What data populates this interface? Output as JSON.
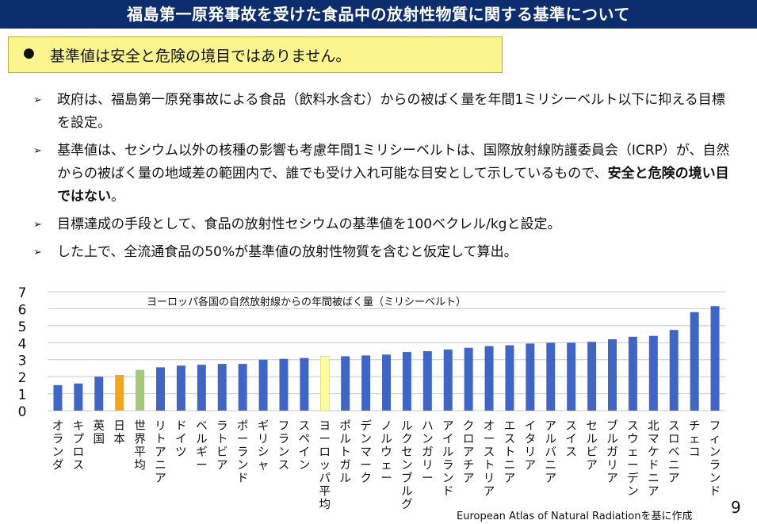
{
  "header": {
    "title": "福島第一原発事故を受けた食品中の放射性物質に関する基準について"
  },
  "callout": {
    "bullet": "●",
    "text": "基準値は安全と危険の境目ではありません。"
  },
  "bullets": {
    "b1": "政府は、福島第一原発事故による食品（飲料水含む）からの被ばく量を年間1ミリシーベルト以下に抑える目標を設定。",
    "b2_pre": "基準値は、セシウム以外の核種の影響も考慮年間1ミリシーベルトは、国際放射線防護委員会（ICRP）が、自然からの被ばく量の地域差の範囲内で、誰でも受け入れ可能な目安として示しているもので、",
    "b2_bold": "安全と危険の境い目ではない",
    "b2_post": "。",
    "b3": "目標達成の手段として、食品の放射性セシウムの基準値を100ベクレル/kgと設定。",
    "b4": "した上で、全流通食品の50%が基準値の放射性物質を含むと仮定して算出。"
  },
  "chart_data": {
    "type": "bar",
    "title": "ヨーロッパ各国の自然放射線からの年間被ばく量（ミリシーベルト）",
    "ylim": [
      0,
      7
    ],
    "yticks": [
      0,
      1,
      2,
      3,
      4,
      5,
      6,
      7
    ],
    "grid": true,
    "categories": [
      "オランダ",
      "キプロス",
      "英国",
      "日本",
      "世界平均",
      "リトアニア",
      "ドイツ",
      "ベルギー",
      "ラトビア",
      "ポーランド",
      "ギリシャ",
      "フランス",
      "スペイン",
      "ヨーロッパ平均",
      "ポルトガル",
      "デンマーク",
      "ノルウェー",
      "ルクセンブルグ",
      "ハンガリー",
      "アイルランド",
      "クロアチア",
      "オーストリア",
      "エストニア",
      "イタリア",
      "アルバニア",
      "スイス",
      "セルビア",
      "ブルガリア",
      "スウェーデン",
      "北マケドニア",
      "スロベニア",
      "チェコ",
      "フィンランド"
    ],
    "values": [
      1.5,
      1.6,
      2.0,
      2.1,
      2.4,
      2.55,
      2.65,
      2.7,
      2.75,
      2.75,
      3.0,
      3.05,
      3.1,
      3.2,
      3.2,
      3.25,
      3.3,
      3.45,
      3.5,
      3.6,
      3.7,
      3.8,
      3.85,
      3.95,
      4.0,
      4.0,
      4.05,
      4.2,
      4.35,
      4.4,
      4.75,
      5.8,
      6.15
    ],
    "colors": {
      "default": "#3f66c6",
      "日本": "#f0a818",
      "世界平均": "#a4c87a",
      "ヨーロッパ平均": "#fdfb9a"
    },
    "grid_color": "#c8c8c8"
  },
  "footer": {
    "source": "European Atlas of Natural Radiationを基に作成",
    "page_number": "9",
    "bullet_arrow": "➢"
  }
}
